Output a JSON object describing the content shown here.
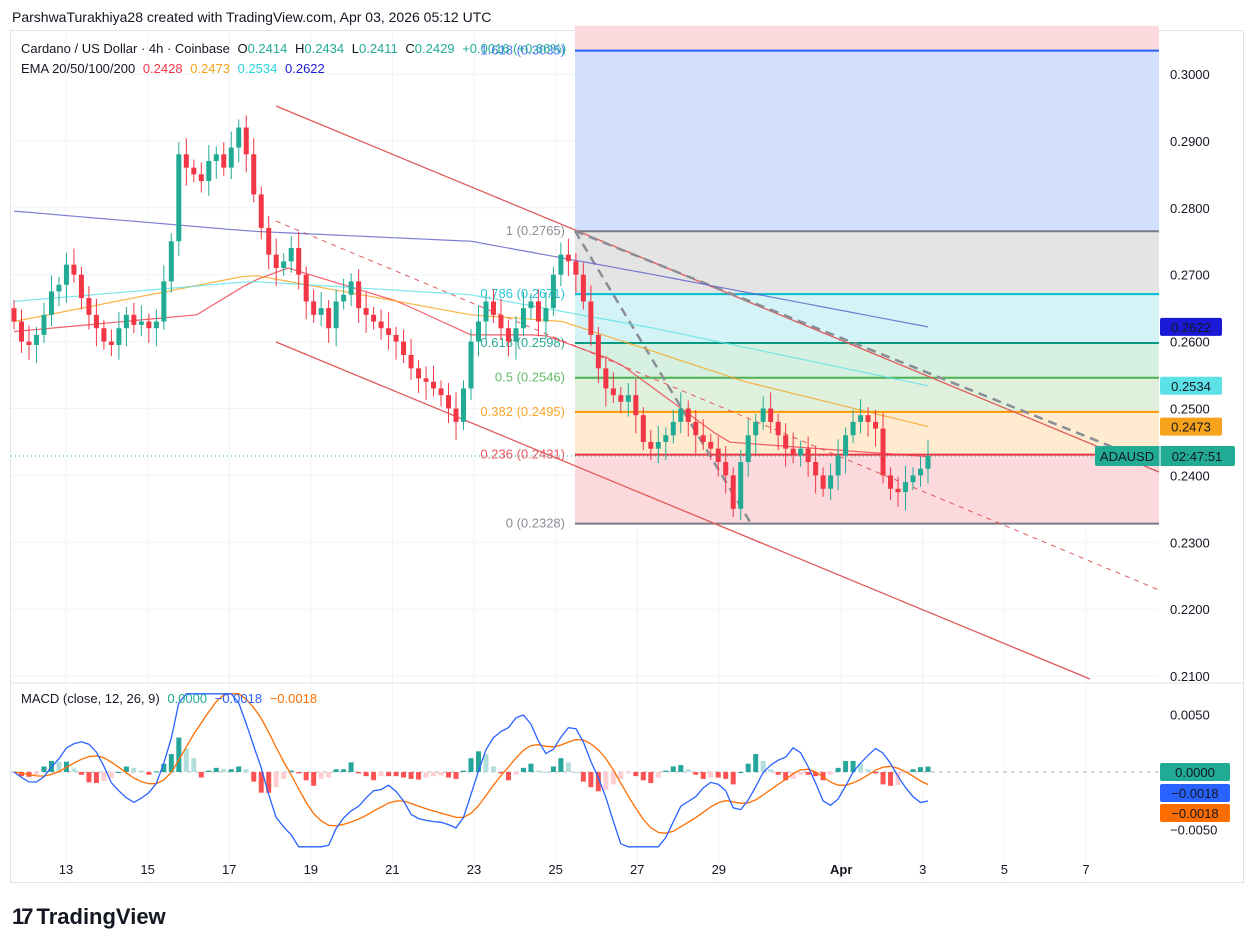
{
  "header": {
    "byline": "ParshwaTurakhiya28 created with TradingView.com, Apr 03, 2026 05:12 UTC"
  },
  "legend": {
    "symbol": "Cardano / US Dollar · 4h · Coinbase",
    "o_label": "O",
    "o_value": "0.2414",
    "h_label": "H",
    "h_value": "0.2434",
    "l_label": "L",
    "l_value": "0.2411",
    "c_label": "C",
    "c_value": "0.2429",
    "change": "+0.0016 (+0.66%)",
    "ema_label": "EMA 20/50/100/200",
    "ema20": "0.2428",
    "ema50": "0.2473",
    "ema100": "0.2534",
    "ema200": "0.2622",
    "macd_label": "MACD (close, 12, 26, 9)",
    "macd_hist": "0.0000",
    "macd_line": "−0.0018",
    "macd_signal": "−0.0018"
  },
  "colors": {
    "up": "#22ab94",
    "down": "#f23645",
    "ema20": "#f23645",
    "ema50": "#f7a21b",
    "ema100": "#5ce1e6",
    "ema200": "#5b5fc7",
    "macd": "#2962ff",
    "signal": "#ff6d00",
    "channel": "#e05a5a",
    "price_line": "#22ab94"
  },
  "fib_labels": [
    {
      "label": "1.618 (0.3035)",
      "value": 0.3035
    },
    {
      "label": "1 (0.2765)",
      "value": 0.2765
    },
    {
      "label": "0.786 (0.2671)",
      "value": 0.2671
    },
    {
      "label": "0.618 (0.2598)",
      "value": 0.2598
    },
    {
      "label": "0.5 (0.2546)",
      "value": 0.2546
    },
    {
      "label": "0.382 (0.2495)",
      "value": 0.2495
    },
    {
      "label": "0.236 (0.2431)",
      "value": 0.2431
    },
    {
      "label": "0 (0.2328)",
      "value": 0.2328
    }
  ],
  "price_tags": [
    {
      "text": "0.2622",
      "value": 0.2622,
      "color": "#1a19d6",
      "fg": "#ffffff"
    },
    {
      "text": "0.2534",
      "value": 0.2534,
      "color": "#5ce1e6",
      "fg": "#131722"
    },
    {
      "text": "0.2473",
      "value": 0.2473,
      "color": "#f7a21b",
      "fg": "#ffffff"
    },
    {
      "text": "0.2428",
      "value": 0.2428,
      "color": "#f23645",
      "fg": "#ffffff"
    }
  ],
  "current_tag": {
    "symbol": "ADAUSD",
    "countdown": "02:47:51"
  },
  "macd_tags": [
    {
      "text": "0.0000",
      "color": "#22ab94"
    },
    {
      "text": "−0.0018",
      "color": "#2962ff"
    },
    {
      "text": "−0.0018",
      "color": "#ff6d00"
    }
  ],
  "logo": {
    "text": "TradingView",
    "mark": "17"
  },
  "chart_data": {
    "type": "candlestick",
    "interval": "4h",
    "price_axis": {
      "ticks": [
        "0.3000",
        "0.2900",
        "0.2800",
        "0.2700",
        "0.2600",
        "0.2500",
        "0.2400",
        "0.2300",
        "0.2200",
        "0.2100"
      ],
      "range": [
        0.2083,
        0.3072
      ]
    },
    "macd_axis": {
      "ticks": [
        "0.0050",
        "0.0000",
        "−0.0050"
      ],
      "range": [
        -0.0073,
        0.0085
      ]
    },
    "x_ticks": [
      "13",
      "15",
      "17",
      "19",
      "21",
      "23",
      "25",
      "27",
      "29",
      "Apr",
      "3",
      "5",
      "7"
    ],
    "x_ticks_bold": [
      false,
      false,
      false,
      false,
      false,
      false,
      false,
      false,
      false,
      true,
      false,
      false,
      false
    ],
    "close_series": [
      0.263,
      0.26,
      0.2595,
      0.261,
      0.264,
      0.2675,
      0.2685,
      0.2715,
      0.27,
      0.2665,
      0.264,
      0.262,
      0.26,
      0.2595,
      0.262,
      0.264,
      0.2625,
      0.263,
      0.262,
      0.263,
      0.269,
      0.275,
      0.288,
      0.286,
      0.285,
      0.284,
      0.287,
      0.288,
      0.286,
      0.289,
      0.292,
      0.288,
      0.282,
      0.277,
      0.273,
      0.271,
      0.272,
      0.274,
      0.27,
      0.266,
      0.264,
      0.265,
      0.262,
      0.266,
      0.267,
      0.269,
      0.265,
      0.264,
      0.263,
      0.262,
      0.261,
      0.26,
      0.258,
      0.256,
      0.2545,
      0.254,
      0.253,
      0.252,
      0.25,
      0.248,
      0.253,
      0.26,
      0.263,
      0.266,
      0.264,
      0.262,
      0.26,
      0.262,
      0.265,
      0.266,
      0.263,
      0.265,
      0.27,
      0.273,
      0.272,
      0.27,
      0.266,
      0.261,
      0.256,
      0.253,
      0.252,
      0.251,
      0.252,
      0.249,
      0.245,
      0.244,
      0.245,
      0.246,
      0.248,
      0.25,
      0.248,
      0.246,
      0.245,
      0.244,
      0.242,
      0.24,
      0.235,
      0.242,
      0.246,
      0.248,
      0.25,
      0.248,
      0.246,
      0.244,
      0.243,
      0.244,
      0.242,
      0.24,
      0.238,
      0.24,
      0.243,
      0.246,
      0.248,
      0.249,
      0.248,
      0.247,
      0.24,
      0.238,
      0.2375,
      0.239,
      0.24,
      0.241,
      0.2429
    ],
    "ema": [
      {
        "name": "EMA 20",
        "start": 0.2615,
        "values_at": {
          "0": 0.2615,
          "0.2": 0.264,
          "0.26": 0.269,
          "0.3": 0.271,
          "0.42": 0.266,
          "0.5": 0.261,
          "0.58": 0.261,
          "0.66": 0.257,
          "0.78": 0.245,
          "1": 0.2428
        }
      },
      {
        "name": "EMA 50",
        "values_at": {
          "0": 0.263,
          "0.26": 0.27,
          "0.5": 0.264,
          "0.6": 0.263,
          "0.8": 0.254,
          "1": 0.2473
        }
      },
      {
        "name": "EMA 100",
        "values_at": {
          "0": 0.266,
          "0.26": 0.269,
          "0.5": 0.267,
          "0.7": 0.262,
          "1": 0.2534
        }
      },
      {
        "name": "EMA 200",
        "values_at": {
          "0": 0.2795,
          "0.26": 0.2765,
          "0.5": 0.275,
          "0.7": 0.27,
          "1": 0.2622
        }
      }
    ]
  }
}
